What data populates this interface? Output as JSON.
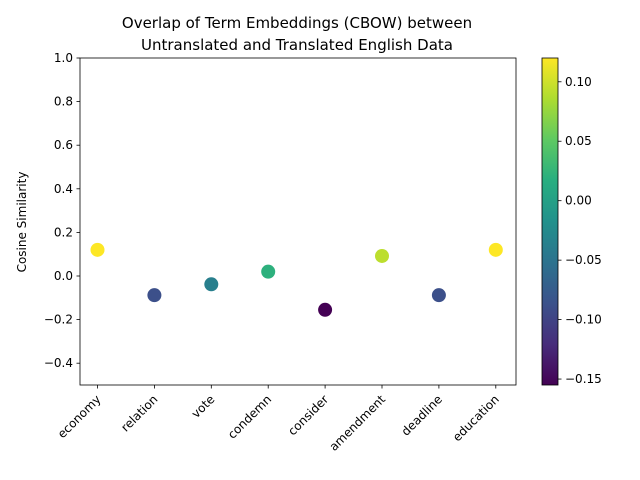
{
  "chart_data": {
    "type": "scatter",
    "title_line1": "Overlap of Term Embeddings (CBOW) between",
    "title_line2": "Untranslated and Translated English Data",
    "xlabel": "",
    "ylabel": "Cosine Similarity",
    "categories": [
      "economy",
      "relation",
      "vote",
      "condemn",
      "consider",
      "amendment",
      "deadline",
      "education"
    ],
    "values": [
      0.12,
      -0.088,
      -0.038,
      0.02,
      -0.155,
      0.092,
      -0.088,
      0.12
    ],
    "ylim": [
      -0.5,
      1.0
    ],
    "yticks": [
      -0.4,
      -0.2,
      0.0,
      0.2,
      0.4,
      0.6,
      0.8,
      1.0
    ],
    "ytick_labels": [
      "−0.4",
      "−0.2",
      "0.0",
      "0.2",
      "0.4",
      "0.6",
      "0.8",
      "1.0"
    ],
    "grid": false,
    "colormap": "viridis",
    "colorbar": {
      "range": [
        -0.155,
        0.12
      ],
      "ticks": [
        0.1,
        0.05,
        0.0,
        -0.05,
        -0.1,
        -0.15
      ],
      "tick_labels": [
        "0.10",
        "0.05",
        "0.00",
        "−0.05",
        "−0.10",
        "−0.15"
      ]
    }
  }
}
